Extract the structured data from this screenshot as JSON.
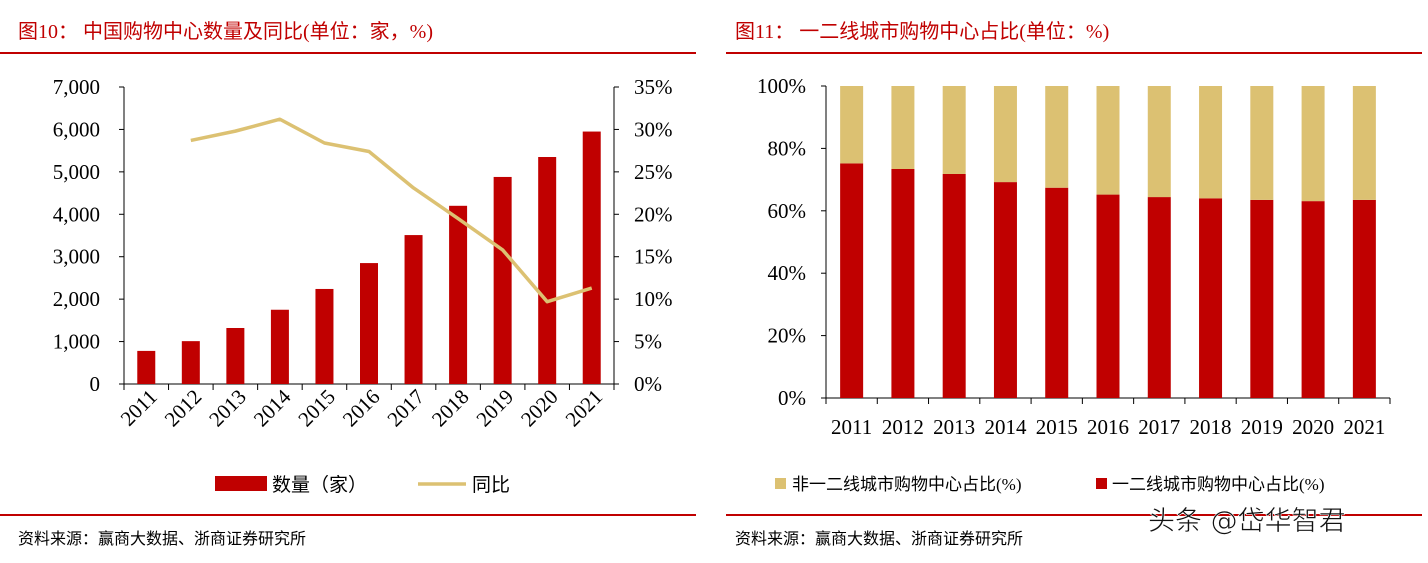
{
  "colors": {
    "primary_red": "#c00000",
    "gold": "#dcc172",
    "axis": "#000000"
  },
  "footer": {
    "source_left": "资料来源：赢商大数据、浙商证券研究所",
    "source_right": "资料来源：赢商大数据、浙商证券研究所"
  },
  "watermark": "头条 @岱华智君",
  "chart_data": [
    {
      "type": "bar+line",
      "title": "图10：  中国购物中心数量及同比(单位：家，%)",
      "categories": [
        "2011",
        "2012",
        "2013",
        "2014",
        "2015",
        "2016",
        "2017",
        "2018",
        "2019",
        "2020",
        "2021"
      ],
      "series": [
        {
          "name": "数量（家）",
          "type": "bar",
          "axis": "left",
          "color": "#c00000",
          "values": [
            780,
            1010,
            1320,
            1750,
            2240,
            2850,
            3510,
            4200,
            4880,
            5350,
            5950
          ]
        },
        {
          "name": "同比",
          "type": "line",
          "axis": "right",
          "color": "#dcc172",
          "values": [
            null,
            28.7,
            29.8,
            31.2,
            28.4,
            27.4,
            23.1,
            19.5,
            15.8,
            9.7,
            11.3
          ]
        }
      ],
      "y_left": {
        "ylim": [
          0,
          7000
        ],
        "ticks": [
          "0",
          "1,000",
          "2,000",
          "3,000",
          "4,000",
          "5,000",
          "6,000",
          "7,000"
        ]
      },
      "y_right": {
        "ylim": [
          0,
          35
        ],
        "ticks": [
          "0%",
          "5%",
          "10%",
          "15%",
          "20%",
          "25%",
          "30%",
          "35%"
        ]
      },
      "grid": false,
      "legend": "bottom"
    },
    {
      "type": "stacked-bar",
      "title": "图11：  一二线城市购物中心占比(单位：%)",
      "categories": [
        "2011",
        "2012",
        "2013",
        "2014",
        "2015",
        "2016",
        "2017",
        "2018",
        "2019",
        "2020",
        "2021"
      ],
      "series": [
        {
          "name": "一二线城市购物中心占比(%)",
          "color": "#c00000",
          "values": [
            75.2,
            73.4,
            71.8,
            69.2,
            67.4,
            65.2,
            64.4,
            64.0,
            63.5,
            63.1,
            63.5
          ]
        },
        {
          "name": "非一二线城市购物中心占比(%)",
          "color": "#dcc172",
          "values": [
            24.8,
            26.6,
            28.2,
            30.8,
            32.6,
            34.8,
            35.6,
            36.0,
            36.5,
            36.9,
            36.5
          ]
        }
      ],
      "ylim": [
        0,
        100
      ],
      "ticks": [
        "0%",
        "20%",
        "40%",
        "60%",
        "80%",
        "100%"
      ],
      "legend_order": [
        "非一二线城市购物中心占比(%)",
        "一二线城市购物中心占比(%)"
      ],
      "grid": false,
      "legend": "bottom"
    }
  ]
}
